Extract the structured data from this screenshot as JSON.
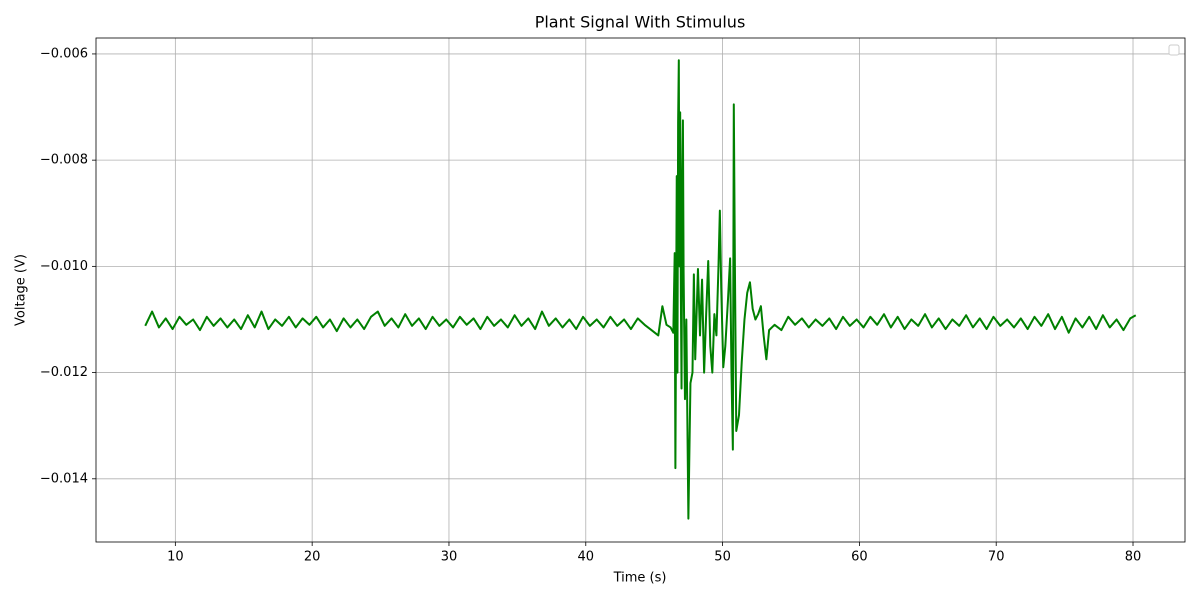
{
  "chart_data": {
    "type": "line",
    "title": "Plant Signal With Stimulus",
    "x_label": "Time (s)",
    "y_label": "Voltage (V)",
    "color": "#008000",
    "grid": true,
    "legend": "upper right",
    "xlim": [
      4.2,
      83.8
    ],
    "ylim": [
      -0.01519,
      -0.0057
    ],
    "xticks": [
      10,
      20,
      30,
      40,
      50,
      60,
      70,
      80
    ],
    "yticks": [
      {
        "value": -0.014,
        "label": "−0.014"
      },
      {
        "value": -0.012,
        "label": "−0.012"
      },
      {
        "value": -0.01,
        "label": "−0.010"
      },
      {
        "value": -0.008,
        "label": "−0.008"
      },
      {
        "value": -0.006,
        "label": "−0.006"
      }
    ],
    "x": [
      7.8,
      8.3,
      8.8,
      9.3,
      9.8,
      10.3,
      10.8,
      11.3,
      11.8,
      12.3,
      12.8,
      13.3,
      13.8,
      14.3,
      14.8,
      15.3,
      15.8,
      16.3,
      16.8,
      17.3,
      17.8,
      18.3,
      18.8,
      19.3,
      19.8,
      20.3,
      20.8,
      21.3,
      21.8,
      22.3,
      22.8,
      23.3,
      23.8,
      24.3,
      24.8,
      25.3,
      25.8,
      26.3,
      26.8,
      27.3,
      27.8,
      28.3,
      28.8,
      29.3,
      29.8,
      30.3,
      30.8,
      31.3,
      31.8,
      32.3,
      32.8,
      33.3,
      33.8,
      34.3,
      34.8,
      35.3,
      35.8,
      36.3,
      36.8,
      37.3,
      37.8,
      38.3,
      38.8,
      39.3,
      39.8,
      40.3,
      40.8,
      41.3,
      41.8,
      42.3,
      42.8,
      43.3,
      43.8,
      44.3,
      44.8,
      45.3,
      45.6,
      45.9,
      46.2,
      46.4,
      46.5,
      46.55,
      46.65,
      46.7,
      46.75,
      46.8,
      46.85,
      46.9,
      46.95,
      47.0,
      47.05,
      47.1,
      47.15,
      47.25,
      47.35,
      47.5,
      47.65,
      47.8,
      47.9,
      48.0,
      48.2,
      48.35,
      48.5,
      48.65,
      48.8,
      48.95,
      49.1,
      49.25,
      49.4,
      49.55,
      49.7,
      49.8,
      49.9,
      50.05,
      50.2,
      50.4,
      50.55,
      50.65,
      50.75,
      50.82,
      50.9,
      51.0,
      51.2,
      51.4,
      51.6,
      51.8,
      52.0,
      52.2,
      52.4,
      52.6,
      52.8,
      53.0,
      53.2,
      53.4,
      53.8,
      54.3,
      54.8,
      55.3,
      55.8,
      56.3,
      56.8,
      57.3,
      57.8,
      58.3,
      58.8,
      59.3,
      59.8,
      60.3,
      60.8,
      61.3,
      61.8,
      62.3,
      62.8,
      63.3,
      63.8,
      64.3,
      64.8,
      65.3,
      65.8,
      66.3,
      66.8,
      67.3,
      67.8,
      68.3,
      68.8,
      69.3,
      69.8,
      70.3,
      70.8,
      71.3,
      71.8,
      72.3,
      72.8,
      73.3,
      73.8,
      74.3,
      74.8,
      75.3,
      75.8,
      76.3,
      76.8,
      77.3,
      77.8,
      78.3,
      78.8,
      79.3,
      79.8,
      80.2
    ],
    "values": [
      -0.01112,
      -0.01085,
      -0.01115,
      -0.01098,
      -0.01118,
      -0.01095,
      -0.0111,
      -0.011,
      -0.0112,
      -0.01095,
      -0.01112,
      -0.01098,
      -0.01115,
      -0.011,
      -0.01118,
      -0.01092,
      -0.01115,
      -0.01085,
      -0.01118,
      -0.011,
      -0.01112,
      -0.01095,
      -0.01115,
      -0.01098,
      -0.0111,
      -0.01095,
      -0.01115,
      -0.011,
      -0.01122,
      -0.01098,
      -0.01115,
      -0.011,
      -0.01118,
      -0.01095,
      -0.01085,
      -0.01112,
      -0.01098,
      -0.01115,
      -0.0109,
      -0.01112,
      -0.01098,
      -0.01118,
      -0.01095,
      -0.01112,
      -0.011,
      -0.01115,
      -0.01095,
      -0.0111,
      -0.01098,
      -0.01118,
      -0.01095,
      -0.01112,
      -0.011,
      -0.01115,
      -0.01092,
      -0.01112,
      -0.01098,
      -0.01118,
      -0.01085,
      -0.01112,
      -0.01098,
      -0.01115,
      -0.011,
      -0.01118,
      -0.01095,
      -0.01112,
      -0.011,
      -0.01115,
      -0.01095,
      -0.01112,
      -0.011,
      -0.01118,
      -0.01098,
      -0.0111,
      -0.0112,
      -0.0113,
      -0.01075,
      -0.0111,
      -0.01115,
      -0.01125,
      -0.00975,
      -0.0138,
      -0.0083,
      -0.012,
      -0.0073,
      -0.00612,
      -0.01,
      -0.0071,
      -0.0105,
      -0.0123,
      -0.0085,
      -0.00725,
      -0.0101,
      -0.0125,
      -0.011,
      -0.01475,
      -0.0122,
      -0.012,
      -0.01015,
      -0.01175,
      -0.01005,
      -0.0113,
      -0.01025,
      -0.012,
      -0.0109,
      -0.0099,
      -0.0115,
      -0.012,
      -0.0109,
      -0.0113,
      -0.01,
      -0.00895,
      -0.0104,
      -0.0119,
      -0.0115,
      -0.0106,
      -0.00985,
      -0.012,
      -0.01345,
      -0.00695,
      -0.01,
      -0.0131,
      -0.0128,
      -0.0118,
      -0.011,
      -0.0105,
      -0.0103,
      -0.0108,
      -0.011,
      -0.0109,
      -0.01075,
      -0.0113,
      -0.01175,
      -0.0112,
      -0.0111,
      -0.0112,
      -0.01095,
      -0.0111,
      -0.01098,
      -0.01115,
      -0.011,
      -0.01112,
      -0.01098,
      -0.01118,
      -0.01095,
      -0.01112,
      -0.011,
      -0.01115,
      -0.01095,
      -0.0111,
      -0.0109,
      -0.01115,
      -0.01095,
      -0.01118,
      -0.011,
      -0.01112,
      -0.0109,
      -0.01115,
      -0.01098,
      -0.01118,
      -0.011,
      -0.01112,
      -0.01092,
      -0.01115,
      -0.01098,
      -0.01118,
      -0.01095,
      -0.01112,
      -0.011,
      -0.01115,
      -0.01098,
      -0.01118,
      -0.01095,
      -0.01112,
      -0.0109,
      -0.01118,
      -0.01095,
      -0.01125,
      -0.01098,
      -0.01115,
      -0.01095,
      -0.01118,
      -0.01092,
      -0.01115,
      -0.011,
      -0.0112,
      -0.01098,
      -0.01092
    ]
  }
}
